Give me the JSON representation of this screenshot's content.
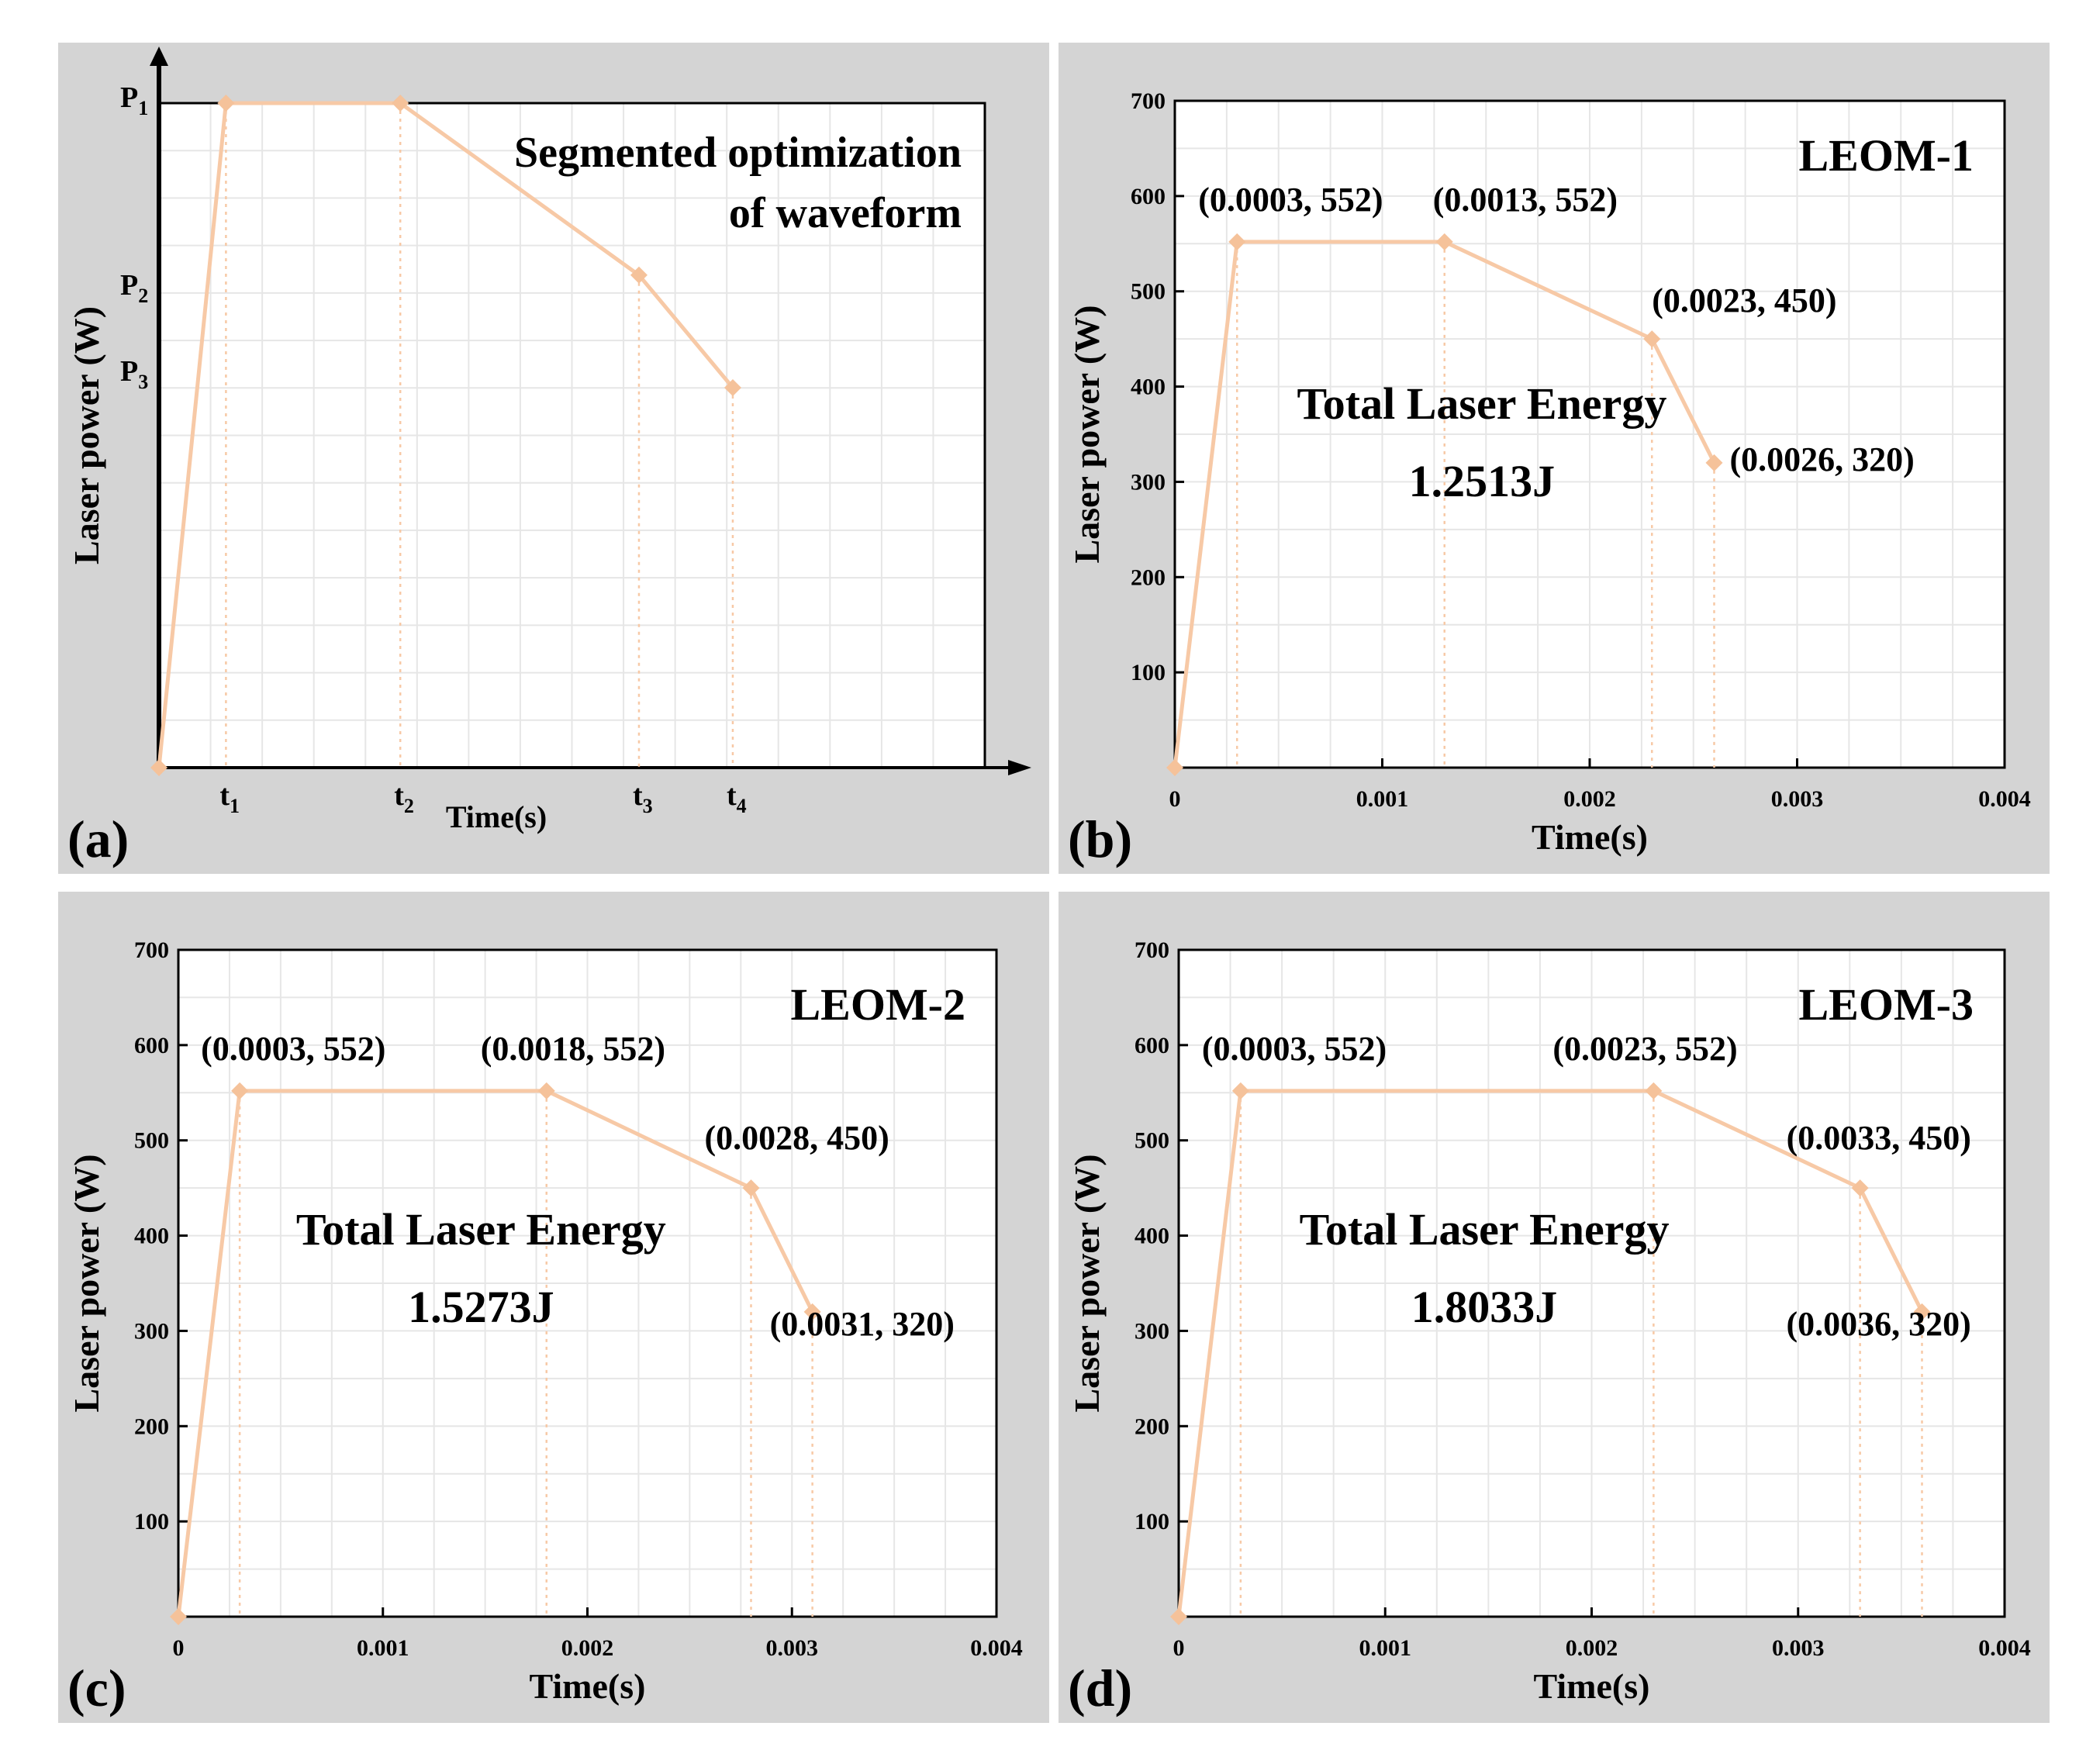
{
  "colors": {
    "panel_bg": "#d4d4d4",
    "plot_bg": "#ffffff",
    "grid": "#e6e6e6",
    "series": "#f7c9a6",
    "marker": "#f5c29a",
    "axis": "#000000"
  },
  "chart_data": [
    {
      "id": "a",
      "panel_label": "(a)",
      "type": "line",
      "schematic": true,
      "title_lines": [
        "Segmented optimization",
        "of waveform"
      ],
      "xlabel": "Time(s)",
      "ylabel": "Laser power (W)",
      "x_symbols": [
        {
          "base": "t",
          "sub": "1"
        },
        {
          "base": "t",
          "sub": "2"
        },
        {
          "base": "t",
          "sub": "3"
        },
        {
          "base": "t",
          "sub": "4"
        }
      ],
      "y_symbols": [
        {
          "base": "P",
          "sub": "1"
        },
        {
          "base": "P",
          "sub": "2"
        },
        {
          "base": "P",
          "sub": "3"
        }
      ],
      "xlim": [
        0,
        1
      ],
      "ylim": [
        0,
        1
      ],
      "points": [
        [
          0,
          0
        ],
        [
          0.0811,
          1
        ],
        [
          0.2922,
          1
        ],
        [
          0.5812,
          0.7412
        ],
        [
          0.6948,
          0.5718
        ]
      ],
      "symbol_x_values": [
        0.0811,
        0.2922,
        0.5812,
        0.6948
      ],
      "symbol_y_values": [
        1,
        0.7176,
        0.5882
      ]
    },
    {
      "id": "b",
      "panel_label": "(b)",
      "type": "line",
      "title": "LEOM-1",
      "energy_label": "Total Laser Energy",
      "energy_value": "1.2513J",
      "xlabel": "Time(s)",
      "ylabel": "Laser power (W)",
      "xlim": [
        0,
        0.004
      ],
      "ylim": [
        0,
        700
      ],
      "xticks": [
        0,
        0.001,
        0.002,
        0.003,
        0.004
      ],
      "xtick_labels": [
        "0",
        "0.001",
        "0.002",
        "0.003",
        "0.004"
      ],
      "yticks": [
        100,
        200,
        300,
        400,
        500,
        600,
        700
      ],
      "ytick_labels": [
        "100",
        "200",
        "300",
        "400",
        "500",
        "600",
        "700"
      ],
      "points": [
        [
          0,
          0
        ],
        [
          0.0003,
          552
        ],
        [
          0.0013,
          552
        ],
        [
          0.0023,
          450
        ],
        [
          0.0026,
          320
        ]
      ],
      "point_labels": [
        "",
        "(0.0003, 552)",
        "(0.0013, 552)",
        "(0.0023, 450)",
        "(0.0026, 320)"
      ]
    },
    {
      "id": "c",
      "panel_label": "(c)",
      "type": "line",
      "title": "LEOM-2",
      "energy_label": "Total Laser Energy",
      "energy_value": "1.5273J",
      "xlabel": "Time(s)",
      "ylabel": "Laser power (W)",
      "xlim": [
        0,
        0.004
      ],
      "ylim": [
        0,
        700
      ],
      "xticks": [
        0,
        0.001,
        0.002,
        0.003,
        0.004
      ],
      "xtick_labels": [
        "0",
        "0.001",
        "0.002",
        "0.003",
        "0.004"
      ],
      "yticks": [
        100,
        200,
        300,
        400,
        500,
        600,
        700
      ],
      "ytick_labels": [
        "100",
        "200",
        "300",
        "400",
        "500",
        "600",
        "700"
      ],
      "points": [
        [
          0,
          0
        ],
        [
          0.0003,
          552
        ],
        [
          0.0018,
          552
        ],
        [
          0.0028,
          450
        ],
        [
          0.0031,
          320
        ]
      ],
      "point_labels": [
        "",
        "(0.0003, 552)",
        "(0.0018, 552)",
        "(0.0028, 450)",
        "(0.0031, 320)"
      ]
    },
    {
      "id": "d",
      "panel_label": "(d)",
      "type": "line",
      "title": "LEOM-3",
      "energy_label": "Total Laser Energy",
      "energy_value": "1.8033J",
      "xlabel": "Time(s)",
      "ylabel": "Laser power (W)",
      "xlim": [
        0,
        0.004
      ],
      "ylim": [
        0,
        700
      ],
      "xticks": [
        0,
        0.001,
        0.002,
        0.003,
        0.004
      ],
      "xtick_labels": [
        "0",
        "0.001",
        "0.002",
        "0.003",
        "0.004"
      ],
      "yticks": [
        100,
        200,
        300,
        400,
        500,
        600,
        700
      ],
      "ytick_labels": [
        "100",
        "200",
        "300",
        "400",
        "500",
        "600",
        "700"
      ],
      "points": [
        [
          0,
          0
        ],
        [
          0.0003,
          552
        ],
        [
          0.0023,
          552
        ],
        [
          0.0033,
          450
        ],
        [
          0.0036,
          320
        ]
      ],
      "point_labels": [
        "",
        "(0.0003, 552)",
        "(0.0023, 552)",
        "(0.0033, 450)",
        "(0.0036, 320)"
      ]
    }
  ]
}
